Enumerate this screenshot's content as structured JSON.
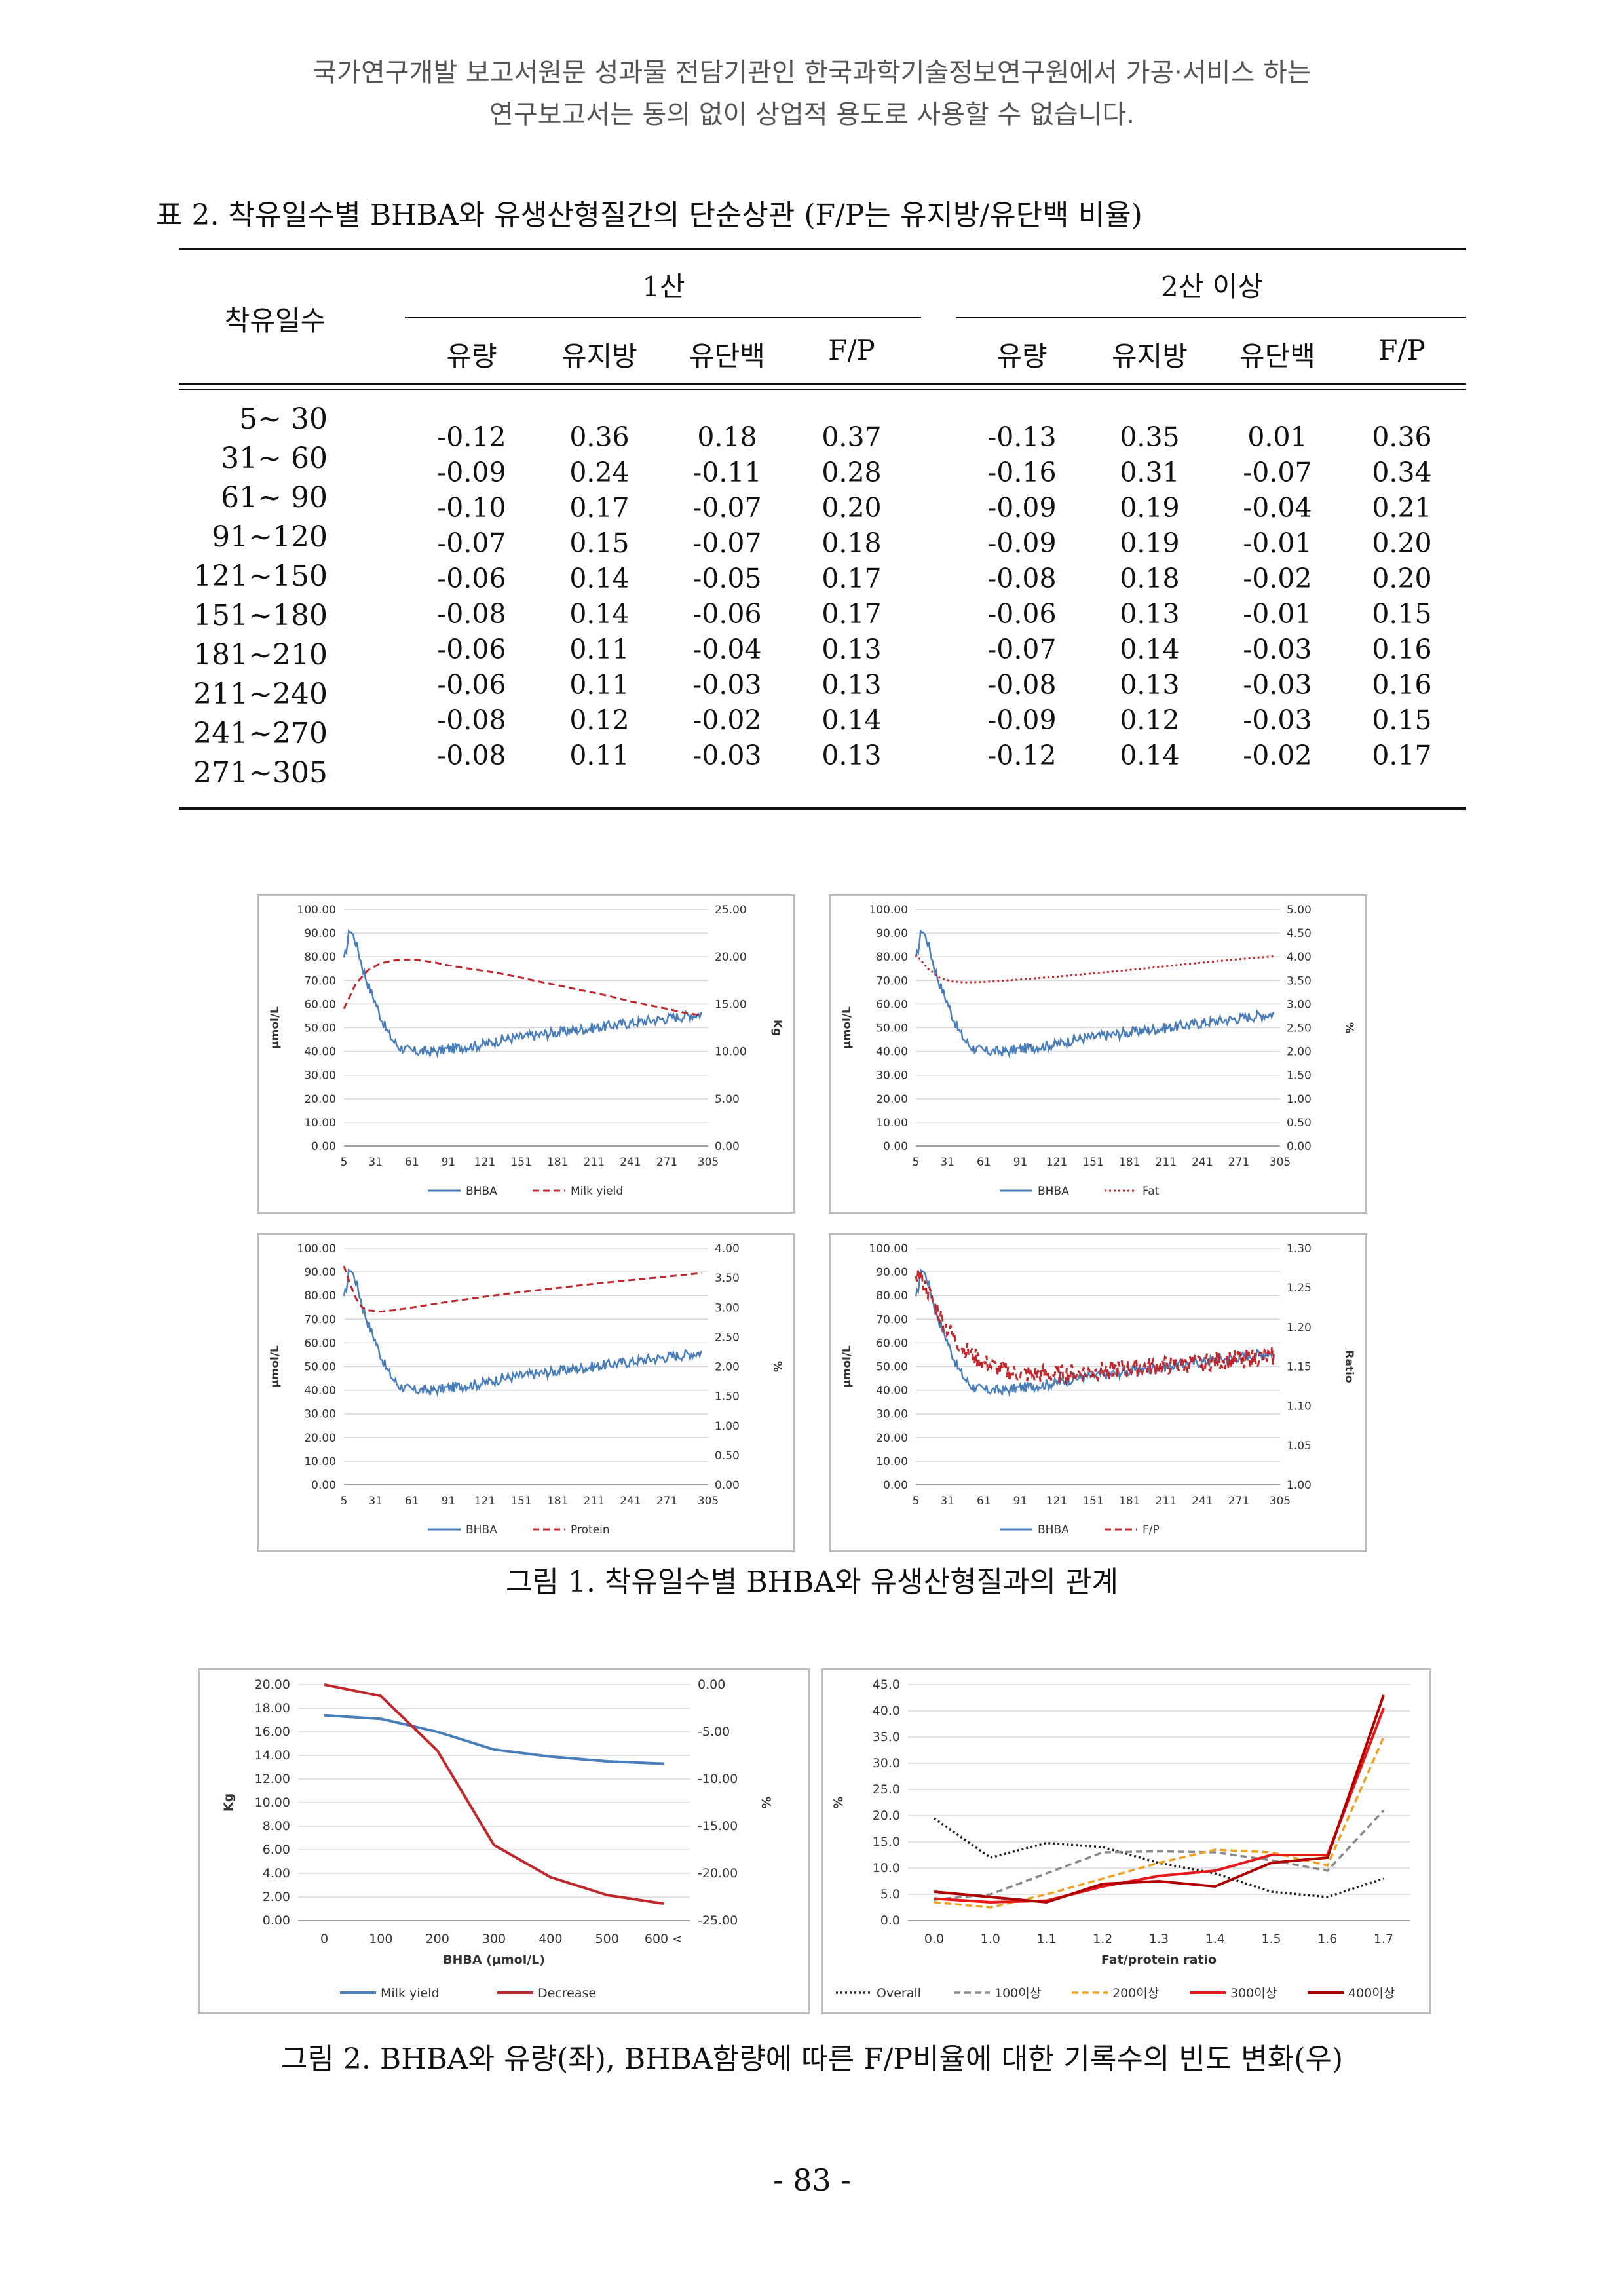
{
  "header": {
    "line1": "국가연구개발 보고서원문 성과물 전담기관인 한국과학기술정보연구원에서 가공·서비스 하는",
    "line2": "연구보고서는 동의 없이 상업적 용도로 사용할 수 없습니다."
  },
  "table": {
    "caption": "표 2. 착유일수별 BHBA와 유생산형질간의 단순상관 (F/P는 유지방/유단백 비율)",
    "row_header": "착유일수",
    "group1": "1산",
    "group2": "2산 이상",
    "columns": [
      "유량",
      "유지방",
      "유단백",
      "F/P"
    ],
    "days": [
      "5~ 30",
      "31~ 60",
      "61~ 90",
      "91~120",
      "121~150",
      "151~180",
      "181~210",
      "211~240",
      "241~270",
      "271~305"
    ],
    "g1": {
      "milk": [
        "-0.12",
        "-0.09",
        "-0.10",
        "-0.07",
        "-0.06",
        "-0.08",
        "-0.06",
        "-0.06",
        "-0.08",
        "-0.08"
      ],
      "fat": [
        "0.36",
        "0.24",
        "0.17",
        "0.15",
        "0.14",
        "0.14",
        "0.11",
        "0.11",
        "0.12",
        "0.11"
      ],
      "protein": [
        "0.18",
        "-0.11",
        "-0.07",
        "-0.07",
        "-0.05",
        "-0.06",
        "-0.04",
        "-0.03",
        "-0.02",
        "-0.03"
      ],
      "fp": [
        "0.37",
        "0.28",
        "0.20",
        "0.18",
        "0.17",
        "0.17",
        "0.13",
        "0.13",
        "0.14",
        "0.13"
      ]
    },
    "g2": {
      "milk": [
        "-0.13",
        "-0.16",
        "-0.09",
        "-0.09",
        "-0.08",
        "-0.06",
        "-0.07",
        "-0.08",
        "-0.09",
        "-0.12"
      ],
      "fat": [
        "0.35",
        "0.31",
        "0.19",
        "0.19",
        "0.18",
        "0.13",
        "0.14",
        "0.13",
        "0.12",
        "0.14"
      ],
      "protein": [
        "0.01",
        "-0.07",
        "-0.04",
        "-0.01",
        "-0.02",
        "-0.01",
        "-0.03",
        "-0.03",
        "-0.03",
        "-0.02"
      ],
      "fp": [
        "0.36",
        "0.34",
        "0.21",
        "0.20",
        "0.20",
        "0.15",
        "0.16",
        "0.16",
        "0.15",
        "0.17"
      ]
    }
  },
  "figure1_caption": "그림 1. 착유일수별 BHBA와 유생산형질과의 관계",
  "figure2_caption": "그림 2. BHBA와 유량(좌), BHBA함량에 따른 F/P비율에 대한 기록수의 빈도 변화(우)",
  "page_number": "- 83 -",
  "colors": {
    "bhba": "#4a7ebb",
    "secondary": "#c0282d"
  },
  "chart_data": [
    {
      "type": "line",
      "x_ticks": [
        "5",
        "31",
        "61",
        "91",
        "121",
        "151",
        "181",
        "211",
        "241",
        "271",
        "305"
      ],
      "y_left_ticks": [
        "100.00",
        "90.00",
        "80.00",
        "70.00",
        "60.00",
        "50.00",
        "40.00",
        "30.00",
        "20.00",
        "10.00",
        "0.00"
      ],
      "y_right_ticks": [
        "25.00",
        "20.00",
        "15.00",
        "10.00",
        "5.00",
        "0.00"
      ],
      "ylabel": "μmol/L",
      "y2label": "Kg",
      "ylim": [
        0,
        100
      ],
      "y2lim": [
        0,
        25
      ],
      "xlim": [
        5,
        305
      ],
      "series": [
        {
          "name": "BHBA",
          "axis": "left",
          "style": "solid",
          "color": "#4a7ebb",
          "x": [
            5,
            10,
            15,
            20,
            25,
            30,
            35,
            40,
            45,
            50,
            55,
            61,
            70,
            80,
            91,
            105,
            121,
            135,
            151,
            165,
            181,
            195,
            211,
            225,
            241,
            255,
            271,
            285,
            300
          ],
          "y": [
            78,
            92,
            86,
            76,
            68,
            62,
            55,
            49,
            45,
            42,
            41,
            40,
            40,
            40,
            41,
            42,
            43,
            45,
            46,
            47,
            48,
            49,
            50,
            51,
            52,
            53,
            54,
            55,
            56
          ]
        },
        {
          "name": "Milk yield",
          "axis": "right",
          "style": "dashed",
          "color": "#c0282d",
          "x": [
            5,
            15,
            25,
            35,
            45,
            55,
            61,
            70,
            80,
            91,
            105,
            121,
            135,
            151,
            165,
            181,
            195,
            211,
            225,
            241,
            255,
            271,
            285,
            300
          ],
          "y": [
            14.5,
            17.2,
            18.6,
            19.3,
            19.6,
            19.7,
            19.7,
            19.6,
            19.4,
            19.1,
            18.8,
            18.5,
            18.2,
            17.8,
            17.4,
            17.0,
            16.6,
            16.2,
            15.8,
            15.3,
            14.9,
            14.5,
            14.1,
            13.8
          ]
        }
      ]
    },
    {
      "type": "line",
      "x_ticks": [
        "5",
        "31",
        "61",
        "91",
        "121",
        "151",
        "181",
        "211",
        "241",
        "271",
        "305"
      ],
      "y_left_ticks": [
        "100.00",
        "90.00",
        "80.00",
        "70.00",
        "60.00",
        "50.00",
        "40.00",
        "30.00",
        "20.00",
        "10.00",
        "0.00"
      ],
      "y_right_ticks": [
        "5.00",
        "4.50",
        "4.00",
        "3.50",
        "3.00",
        "2.50",
        "2.00",
        "1.50",
        "1.00",
        "0.50",
        "0.00"
      ],
      "ylabel": "μmol/L",
      "y2label": "%",
      "ylim": [
        0,
        100
      ],
      "y2lim": [
        0,
        5
      ],
      "xlim": [
        5,
        305
      ],
      "series": [
        {
          "name": "BHBA",
          "axis": "left",
          "style": "solid",
          "color": "#4a7ebb",
          "x": [
            5,
            10,
            15,
            20,
            25,
            30,
            35,
            40,
            45,
            50,
            55,
            61,
            70,
            80,
            91,
            105,
            121,
            135,
            151,
            165,
            181,
            195,
            211,
            225,
            241,
            255,
            271,
            285,
            300
          ],
          "y": [
            78,
            92,
            86,
            76,
            68,
            62,
            55,
            49,
            45,
            42,
            41,
            40,
            40,
            40,
            41,
            42,
            43,
            45,
            46,
            47,
            48,
            49,
            50,
            51,
            52,
            53,
            54,
            55,
            56
          ]
        },
        {
          "name": "Fat",
          "axis": "right",
          "style": "dotted",
          "color": "#c0282d",
          "x": [
            5,
            15,
            25,
            35,
            45,
            61,
            80,
            100,
            121,
            151,
            181,
            211,
            241,
            271,
            300
          ],
          "y": [
            4.05,
            3.75,
            3.55,
            3.48,
            3.46,
            3.47,
            3.5,
            3.54,
            3.58,
            3.65,
            3.72,
            3.8,
            3.88,
            3.95,
            4.01
          ]
        }
      ]
    },
    {
      "type": "line",
      "x_ticks": [
        "5",
        "31",
        "61",
        "91",
        "121",
        "151",
        "181",
        "211",
        "241",
        "271",
        "305"
      ],
      "y_left_ticks": [
        "100.00",
        "90.00",
        "80.00",
        "70.00",
        "60.00",
        "50.00",
        "40.00",
        "30.00",
        "20.00",
        "10.00",
        "0.00"
      ],
      "y_right_ticks": [
        "4.00",
        "3.50",
        "3.00",
        "2.50",
        "2.00",
        "1.50",
        "1.00",
        "0.50",
        "0.00"
      ],
      "ylabel": "μmol/L",
      "y2label": "%",
      "ylim": [
        0,
        100
      ],
      "y2lim": [
        0,
        4
      ],
      "xlim": [
        5,
        305
      ],
      "series": [
        {
          "name": "BHBA",
          "axis": "left",
          "style": "solid",
          "color": "#4a7ebb",
          "x": [
            5,
            10,
            15,
            20,
            25,
            30,
            35,
            40,
            45,
            50,
            55,
            61,
            70,
            80,
            91,
            105,
            121,
            135,
            151,
            165,
            181,
            195,
            211,
            225,
            241,
            255,
            271,
            285,
            300
          ],
          "y": [
            78,
            92,
            86,
            76,
            68,
            62,
            55,
            49,
            45,
            42,
            41,
            40,
            40,
            40,
            41,
            42,
            43,
            45,
            46,
            47,
            48,
            49,
            50,
            51,
            52,
            53,
            54,
            55,
            56
          ]
        },
        {
          "name": "Protein",
          "axis": "right",
          "style": "dashed",
          "color": "#c0282d",
          "x": [
            5,
            10,
            15,
            20,
            25,
            35,
            45,
            61,
            80,
            100,
            121,
            151,
            181,
            211,
            241,
            271,
            300
          ],
          "y": [
            3.7,
            3.4,
            3.15,
            3.0,
            2.95,
            2.93,
            2.95,
            3.0,
            3.06,
            3.12,
            3.18,
            3.26,
            3.33,
            3.4,
            3.46,
            3.52,
            3.58
          ]
        }
      ]
    },
    {
      "type": "line",
      "x_ticks": [
        "5",
        "31",
        "61",
        "91",
        "121",
        "151",
        "181",
        "211",
        "241",
        "271",
        "305"
      ],
      "y_left_ticks": [
        "100.00",
        "90.00",
        "80.00",
        "70.00",
        "60.00",
        "50.00",
        "40.00",
        "30.00",
        "20.00",
        "10.00",
        "0.00"
      ],
      "y_right_ticks": [
        "1.30",
        "1.25",
        "1.20",
        "1.15",
        "1.10",
        "1.05",
        "1.00"
      ],
      "ylabel": "μmol/L",
      "y2label": "Ratio",
      "ylim": [
        0,
        100
      ],
      "y2lim": [
        1,
        1.3
      ],
      "xlim": [
        5,
        305
      ],
      "series": [
        {
          "name": "BHBA",
          "axis": "left",
          "style": "solid",
          "color": "#4a7ebb",
          "x": [
            5,
            10,
            15,
            20,
            25,
            30,
            35,
            40,
            45,
            50,
            55,
            61,
            70,
            80,
            91,
            105,
            121,
            135,
            151,
            165,
            181,
            195,
            211,
            225,
            241,
            255,
            271,
            285,
            300
          ],
          "y": [
            78,
            92,
            86,
            76,
            68,
            62,
            55,
            49,
            45,
            42,
            41,
            40,
            40,
            40,
            41,
            42,
            43,
            45,
            46,
            47,
            48,
            49,
            50,
            51,
            52,
            53,
            54,
            55,
            56
          ]
        },
        {
          "name": "F/P",
          "axis": "right",
          "style": "dashed",
          "color": "#c0282d",
          "x": [
            5,
            10,
            15,
            20,
            25,
            30,
            40,
            50,
            61,
            75,
            91,
            105,
            121,
            140,
            160,
            181,
            200,
            221,
            241,
            260,
            280,
            300
          ],
          "y": [
            1.27,
            1.26,
            1.245,
            1.23,
            1.215,
            1.2,
            1.18,
            1.165,
            1.155,
            1.145,
            1.14,
            1.14,
            1.14,
            1.142,
            1.145,
            1.148,
            1.15,
            1.152,
            1.155,
            1.158,
            1.16,
            1.162
          ]
        }
      ]
    },
    {
      "type": "line",
      "categories": [
        "0",
        "100",
        "200",
        "300",
        "400",
        "500",
        "600 <"
      ],
      "y_left_ticks": [
        "20.00",
        "18.00",
        "16.00",
        "14.00",
        "12.00",
        "10.00",
        "8.00",
        "6.00",
        "4.00",
        "2.00",
        "0.00"
      ],
      "y_right_ticks": [
        "0.00",
        "-5.00",
        "-10.00",
        "-15.00",
        "-20.00",
        "-25.00"
      ],
      "xlabel": "BHBA (μmol/L)",
      "ylabel": "Kg",
      "y2label": "%",
      "ylim": [
        0,
        20
      ],
      "y2lim": [
        -25,
        0
      ],
      "series": [
        {
          "name": "Milk yield",
          "axis": "left",
          "color": "#4a7ebb",
          "values": [
            17.4,
            17.1,
            16.0,
            14.5,
            13.9,
            13.5,
            13.3
          ]
        },
        {
          "name": "Decrease",
          "axis": "right",
          "color": "#c0282d",
          "values": [
            0.0,
            -1.2,
            -7.0,
            -17.0,
            -20.4,
            -22.3,
            -23.2
          ]
        }
      ]
    },
    {
      "type": "line",
      "categories": [
        "0.0",
        "1.0",
        "1.1",
        "1.2",
        "1.3",
        "1.4",
        "1.5",
        "1.6",
        "1.7"
      ],
      "y_ticks": [
        "45.0",
        "40.0",
        "35.0",
        "30.0",
        "25.0",
        "20.0",
        "15.0",
        "10.0",
        "5.0",
        "0.0"
      ],
      "xlabel": "Fat/protein ratio",
      "ylabel": "%",
      "ylim": [
        0,
        45
      ],
      "series": [
        {
          "name": "Overall",
          "style": "dotted",
          "color": "#222222",
          "values": [
            19.5,
            12.0,
            14.8,
            14.0,
            11.0,
            9.0,
            5.5,
            4.5,
            8.0
          ]
        },
        {
          "name": "100이상",
          "style": "dashed",
          "color": "#8a8a8a",
          "values": [
            4.0,
            5.0,
            9.0,
            13.0,
            13.2,
            13.0,
            11.5,
            9.5,
            21.0
          ]
        },
        {
          "name": "200이상",
          "style": "dashed",
          "color": "#f0a020",
          "values": [
            3.5,
            2.5,
            5.0,
            8.0,
            11.0,
            13.5,
            13.0,
            10.5,
            35.0
          ]
        },
        {
          "name": "300이상",
          "style": "solid",
          "color": "#e8191a",
          "values": [
            4.2,
            3.5,
            3.8,
            6.5,
            8.5,
            9.5,
            12.5,
            12.5,
            40.5
          ]
        },
        {
          "name": "400이상",
          "style": "solid",
          "color": "#b00000",
          "values": [
            5.5,
            4.5,
            3.5,
            7.0,
            7.5,
            6.5,
            11.0,
            12.0,
            43.0
          ]
        }
      ]
    }
  ]
}
